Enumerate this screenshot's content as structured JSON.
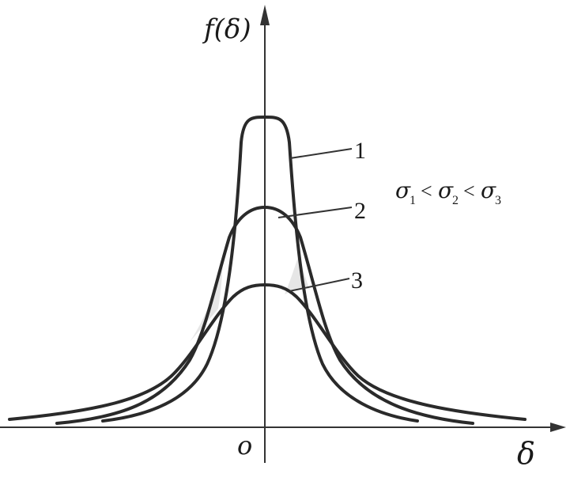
{
  "axes": {
    "y_label": "f(δ)",
    "x_label": "δ",
    "origin_label": "o"
  },
  "curves": [
    {
      "label": "1"
    },
    {
      "label": "2"
    },
    {
      "label": "3"
    }
  ],
  "relation": {
    "sigma": "σ",
    "sub1": "1",
    "sub2": "2",
    "sub3": "3",
    "lt": "<"
  },
  "colors": {
    "ink": "#2a2a2a",
    "shade": "#e6e6e6",
    "background": "#ffffff"
  }
}
